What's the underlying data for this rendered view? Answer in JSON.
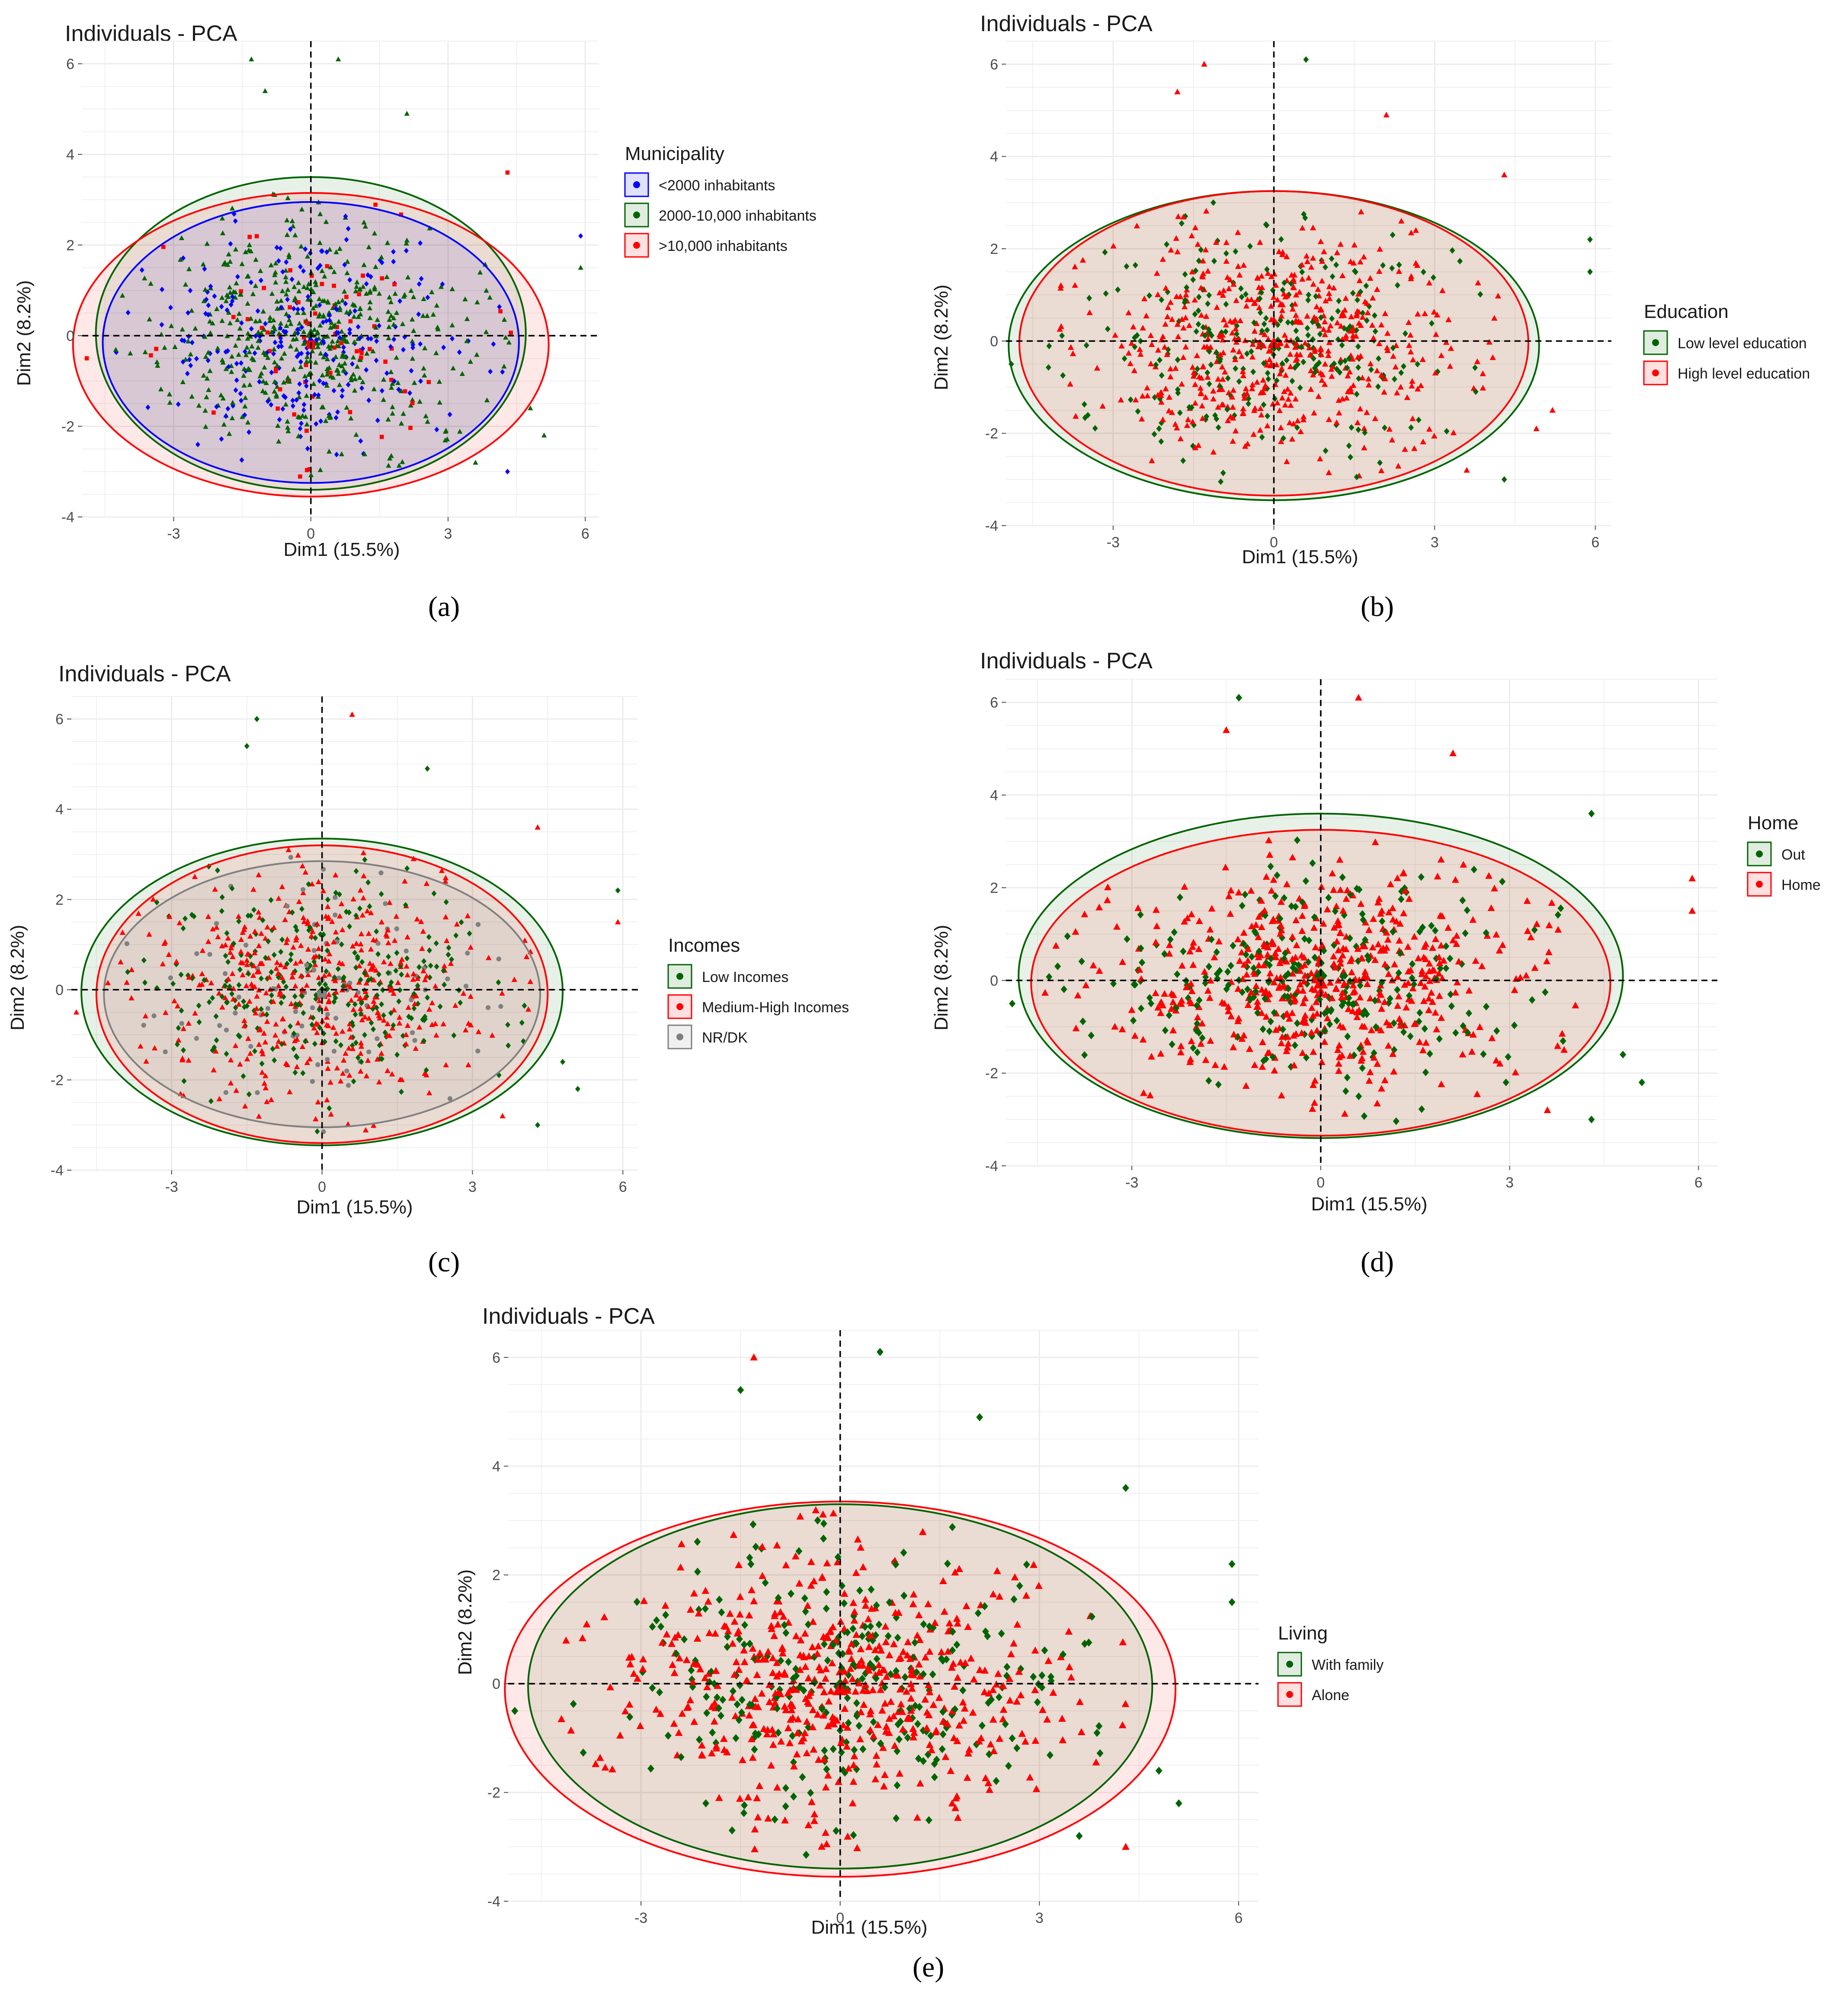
{
  "chart_data": [
    {
      "type": "scatter",
      "title": "Individuals - PCA",
      "xlabel": "Dim1 (15.5%)",
      "ylabel": "Dim2 (8.2%)",
      "xlim": [
        -5,
        6.3
      ],
      "ylim": [
        -4,
        6.5
      ],
      "xticks": [
        "-3",
        "0",
        "3",
        "6"
      ],
      "yticks": [
        "-4",
        "-2",
        "0",
        "2",
        "4",
        "6"
      ],
      "grid": true,
      "legend_position": "right",
      "legend_title": "Municipality",
      "caption": "(a)",
      "series": [
        {
          "name": "<2000 inhabitants",
          "color": "#0000ff",
          "marker": "diamond",
          "ellipse": {
            "cx": 0.0,
            "cy": -0.15,
            "rx": 4.55,
            "ry": 3.1
          }
        },
        {
          "name": "2000-10,000 inhabitants",
          "color": "#006400",
          "marker": "triangle",
          "ellipse": {
            "cx": 0.0,
            "cy": 0.05,
            "rx": 4.7,
            "ry": 3.45
          }
        },
        {
          "name": ">10,000 inhabitants",
          "color": "#ff0000",
          "marker": "square",
          "ellipse": {
            "cx": 0.0,
            "cy": -0.2,
            "rx": 5.2,
            "ry": 3.35
          }
        }
      ],
      "outliers": [
        {
          "x": -1.3,
          "y": 6.1,
          "s": 1
        },
        {
          "x": 0.6,
          "y": 6.1,
          "s": 1
        },
        {
          "x": -1.0,
          "y": 5.4,
          "s": 1
        },
        {
          "x": 2.1,
          "y": 4.9,
          "s": 1
        },
        {
          "x": 4.3,
          "y": 3.6,
          "s": 2
        },
        {
          "x": 5.9,
          "y": 2.2,
          "s": 0
        },
        {
          "x": 5.9,
          "y": 1.5,
          "s": 1
        },
        {
          "x": -4.9,
          "y": -0.5,
          "s": 2
        },
        {
          "x": 4.3,
          "y": -3.0,
          "s": 0
        },
        {
          "x": 5.1,
          "y": -2.2,
          "s": 1
        },
        {
          "x": 4.8,
          "y": -1.6,
          "s": 1
        },
        {
          "x": 3.6,
          "y": -2.8,
          "s": 1
        }
      ]
    },
    {
      "type": "scatter",
      "title": "Individuals - PCA",
      "xlabel": "Dim1 (15.5%)",
      "ylabel": "Dim2 (8.2%)",
      "xlim": [
        -5,
        6.3
      ],
      "ylim": [
        -4,
        6.5
      ],
      "xticks": [
        "-3",
        "0",
        "3",
        "6"
      ],
      "yticks": [
        "-4",
        "-2",
        "0",
        "2",
        "4",
        "6"
      ],
      "grid": true,
      "legend_position": "right",
      "legend_title": "Education",
      "caption": "(b)",
      "series": [
        {
          "name": "Low level education",
          "color": "#006400",
          "marker": "diamond",
          "ellipse": {
            "cx": 0.0,
            "cy": -0.1,
            "rx": 4.95,
            "ry": 3.35
          }
        },
        {
          "name": "High level education",
          "color": "#ff0000",
          "marker": "triangle",
          "ellipse": {
            "cx": 0.0,
            "cy": -0.05,
            "rx": 4.75,
            "ry": 3.3
          }
        }
      ],
      "outliers": [
        {
          "x": -1.3,
          "y": 6.0,
          "s": 1
        },
        {
          "x": 0.6,
          "y": 6.1,
          "s": 0
        },
        {
          "x": -1.8,
          "y": 5.4,
          "s": 1
        },
        {
          "x": 2.1,
          "y": 4.9,
          "s": 1
        },
        {
          "x": 4.3,
          "y": 3.6,
          "s": 1
        },
        {
          "x": 5.9,
          "y": 2.2,
          "s": 0
        },
        {
          "x": 5.9,
          "y": 1.5,
          "s": 0
        },
        {
          "x": -4.9,
          "y": -0.5,
          "s": 0
        },
        {
          "x": 4.3,
          "y": -3.0,
          "s": 0
        },
        {
          "x": 5.2,
          "y": -1.5,
          "s": 1
        },
        {
          "x": 4.9,
          "y": -1.9,
          "s": 1
        },
        {
          "x": 3.6,
          "y": -2.8,
          "s": 1
        }
      ]
    },
    {
      "type": "scatter",
      "title": "Individuals - PCA",
      "xlabel": "Dim1 (15.5%)",
      "ylabel": "Dim2 (8.2%)",
      "xlim": [
        -5,
        6.3
      ],
      "ylim": [
        -4,
        6.5
      ],
      "xticks": [
        "-3",
        "0",
        "3",
        "6"
      ],
      "yticks": [
        "-4",
        "-2",
        "0",
        "2",
        "4",
        "6"
      ],
      "grid": true,
      "legend_position": "right",
      "legend_title": "Incomes",
      "caption": "(c)",
      "series": [
        {
          "name": "Low Incomes",
          "color": "#006400",
          "marker": "diamond",
          "ellipse": {
            "cx": 0.0,
            "cy": -0.05,
            "rx": 4.8,
            "ry": 3.4
          }
        },
        {
          "name": "Medium-High Incomes",
          "color": "#ff0000",
          "marker": "triangle",
          "ellipse": {
            "cx": 0.0,
            "cy": -0.1,
            "rx": 4.5,
            "ry": 3.3
          }
        },
        {
          "name": "NR/DK",
          "color": "#808080",
          "marker": "circle",
          "ellipse": {
            "cx": 0.0,
            "cy": -0.1,
            "rx": 4.35,
            "ry": 2.95
          }
        }
      ],
      "outliers": [
        {
          "x": -1.3,
          "y": 6.0,
          "s": 0
        },
        {
          "x": 0.6,
          "y": 6.1,
          "s": 1
        },
        {
          "x": -1.5,
          "y": 5.4,
          "s": 0
        },
        {
          "x": 2.1,
          "y": 4.9,
          "s": 0
        },
        {
          "x": 4.3,
          "y": 3.6,
          "s": 1
        },
        {
          "x": 5.9,
          "y": 2.2,
          "s": 0
        },
        {
          "x": 5.9,
          "y": 1.5,
          "s": 1
        },
        {
          "x": -4.9,
          "y": -0.5,
          "s": 1
        },
        {
          "x": 4.3,
          "y": -3.0,
          "s": 0
        },
        {
          "x": 5.1,
          "y": -2.2,
          "s": 0
        },
        {
          "x": 4.8,
          "y": -1.6,
          "s": 0
        },
        {
          "x": 3.6,
          "y": -2.8,
          "s": 1
        }
      ]
    },
    {
      "type": "scatter",
      "title": "Individuals - PCA",
      "xlabel": "Dim1 (15.5%)",
      "ylabel": "Dim2 (8.2%)",
      "xlim": [
        -5,
        6.3
      ],
      "ylim": [
        -4,
        6.5
      ],
      "xticks": [
        "-3",
        "0",
        "3",
        "6"
      ],
      "yticks": [
        "-4",
        "-2",
        "0",
        "2",
        "4",
        "6"
      ],
      "grid": true,
      "legend_position": "right",
      "legend_title": "Home",
      "caption": "(d)",
      "series": [
        {
          "name": "Out",
          "color": "#006400",
          "marker": "diamond",
          "ellipse": {
            "cx": 0.0,
            "cy": 0.1,
            "rx": 4.8,
            "ry": 3.5
          }
        },
        {
          "name": "Home",
          "color": "#ff0000",
          "marker": "triangle",
          "ellipse": {
            "cx": 0.0,
            "cy": -0.05,
            "rx": 4.6,
            "ry": 3.3
          }
        }
      ],
      "outliers": [
        {
          "x": -1.3,
          "y": 6.1,
          "s": 0
        },
        {
          "x": 0.6,
          "y": 6.1,
          "s": 1
        },
        {
          "x": -1.5,
          "y": 5.4,
          "s": 1
        },
        {
          "x": 2.1,
          "y": 4.9,
          "s": 1
        },
        {
          "x": 4.3,
          "y": 3.6,
          "s": 0
        },
        {
          "x": 5.9,
          "y": 2.2,
          "s": 1
        },
        {
          "x": 5.9,
          "y": 1.5,
          "s": 1
        },
        {
          "x": -4.9,
          "y": -0.5,
          "s": 0
        },
        {
          "x": 4.3,
          "y": -3.0,
          "s": 0
        },
        {
          "x": 5.1,
          "y": -2.2,
          "s": 0
        },
        {
          "x": 4.8,
          "y": -1.6,
          "s": 0
        },
        {
          "x": 3.6,
          "y": -2.8,
          "s": 1
        }
      ]
    },
    {
      "type": "scatter",
      "title": "Individuals - PCA",
      "xlabel": "Dim1 (15.5%)",
      "ylabel": "Dim2 (8.2%)",
      "xlim": [
        -5,
        6.3
      ],
      "ylim": [
        -4,
        6.5
      ],
      "xticks": [
        "-3",
        "0",
        "3",
        "6"
      ],
      "yticks": [
        "-4",
        "-2",
        "0",
        "2",
        "4",
        "6"
      ],
      "grid": true,
      "legend_position": "right",
      "legend_title": "Living",
      "caption": "(e)",
      "series": [
        {
          "name": "With family",
          "color": "#006400",
          "marker": "diamond",
          "ellipse": {
            "cx": 0.0,
            "cy": -0.05,
            "rx": 4.7,
            "ry": 3.35
          }
        },
        {
          "name": "Alone",
          "color": "#ff0000",
          "marker": "triangle",
          "ellipse": {
            "cx": 0.0,
            "cy": -0.1,
            "rx": 5.05,
            "ry": 3.45
          }
        }
      ],
      "outliers": [
        {
          "x": -1.3,
          "y": 6.0,
          "s": 1
        },
        {
          "x": 0.6,
          "y": 6.1,
          "s": 0
        },
        {
          "x": -1.5,
          "y": 5.4,
          "s": 0
        },
        {
          "x": 2.1,
          "y": 4.9,
          "s": 0
        },
        {
          "x": 4.3,
          "y": 3.6,
          "s": 0
        },
        {
          "x": 5.9,
          "y": 2.2,
          "s": 0
        },
        {
          "x": 5.9,
          "y": 1.5,
          "s": 0
        },
        {
          "x": -4.9,
          "y": -0.5,
          "s": 0
        },
        {
          "x": 4.3,
          "y": -3.0,
          "s": 1
        },
        {
          "x": 5.1,
          "y": -2.2,
          "s": 0
        },
        {
          "x": 4.8,
          "y": -1.6,
          "s": 0
        },
        {
          "x": 3.6,
          "y": -2.8,
          "s": 0
        }
      ]
    }
  ]
}
